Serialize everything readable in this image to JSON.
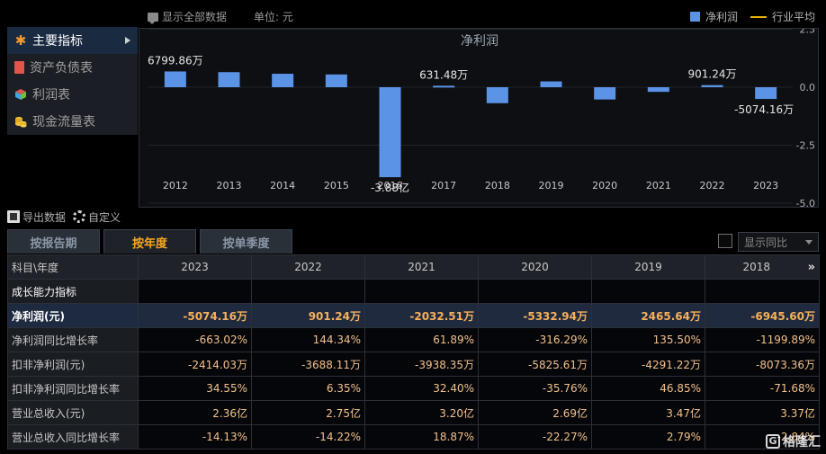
{
  "toolbar": {
    "show_all_label": "显示全部数据",
    "unit_label": "单位: 元",
    "legend_net_profit": "净利润",
    "legend_industry_avg": "行业平均"
  },
  "nav": {
    "items": [
      {
        "label": "主要指标",
        "icon": "asterisk-icon",
        "active": true
      },
      {
        "label": "资产负债表",
        "icon": "document-icon",
        "active": false
      },
      {
        "label": "利润表",
        "icon": "cube-icon",
        "active": false
      },
      {
        "label": "现金流量表",
        "icon": "coins-icon",
        "active": false
      }
    ]
  },
  "chart_data": {
    "type": "bar",
    "title": "净利润",
    "categories": [
      "2012",
      "2013",
      "2014",
      "2015",
      "2016",
      "2017",
      "2018",
      "2019",
      "2020",
      "2021",
      "2022",
      "2023"
    ],
    "series": [
      {
        "name": "净利润",
        "color": "#5b93e6",
        "values_yi": [
          0.68,
          0.65,
          0.58,
          0.55,
          -3.88,
          0.0631,
          -0.69,
          0.25,
          -0.53,
          -0.2,
          0.0901,
          -0.5074
        ]
      }
    ],
    "annotations": [
      {
        "category": "2012",
        "text": "6799.86万"
      },
      {
        "category": "2016",
        "text": "-3.88亿"
      },
      {
        "category": "2017",
        "text": "631.48万"
      },
      {
        "category": "2022",
        "text": "901.24万"
      },
      {
        "category": "2023",
        "text": "-5074.16万"
      }
    ],
    "y_ticks": [
      "2.5",
      "0.0",
      "-2.5",
      "-5.0"
    ],
    "ylim": [
      -5.0,
      2.5
    ],
    "grid": true
  },
  "tools": {
    "export_label": "导出数据",
    "custom_label": "自定义"
  },
  "tabs": [
    {
      "label": "按报告期",
      "active": false
    },
    {
      "label": "按年度",
      "active": true
    },
    {
      "label": "按单季度",
      "active": false
    }
  ],
  "yoy_select": {
    "value": "显示同比"
  },
  "table": {
    "header_label": "科目\\年度",
    "years": [
      "2023",
      "2022",
      "2021",
      "2020",
      "2019",
      "2018"
    ],
    "more_label": "»",
    "section_label": "成长能力指标",
    "rows": [
      {
        "label": "净利润(元)",
        "highlight": true,
        "values": [
          "-5074.16万",
          "901.24万",
          "-2032.51万",
          "-5332.94万",
          "2465.64万",
          "-6945.60万"
        ]
      },
      {
        "label": "净利润同比增长率",
        "highlight": false,
        "values": [
          "-663.02%",
          "144.34%",
          "61.89%",
          "-316.29%",
          "135.50%",
          "-1199.89%"
        ]
      },
      {
        "label": "扣非净利润(元)",
        "highlight": false,
        "values": [
          "-2414.03万",
          "-3688.11万",
          "-3938.35万",
          "-5825.61万",
          "-4291.22万",
          "-8073.36万"
        ]
      },
      {
        "label": "扣非净利润同比增长率",
        "highlight": false,
        "values": [
          "34.55%",
          "6.35%",
          "32.40%",
          "-35.76%",
          "46.85%",
          "-71.68%"
        ]
      },
      {
        "label": "营业总收入(元)",
        "highlight": false,
        "values": [
          "2.36亿",
          "2.75亿",
          "3.20亿",
          "2.69亿",
          "3.47亿",
          "3.37亿"
        ]
      },
      {
        "label": "营业总收入同比增长率",
        "highlight": false,
        "values": [
          "-14.13%",
          "-14.22%",
          "18.87%",
          "-22.27%",
          "2.79%",
          "-2.84%"
        ]
      }
    ]
  },
  "watermark": {
    "text": "格隆汇"
  }
}
